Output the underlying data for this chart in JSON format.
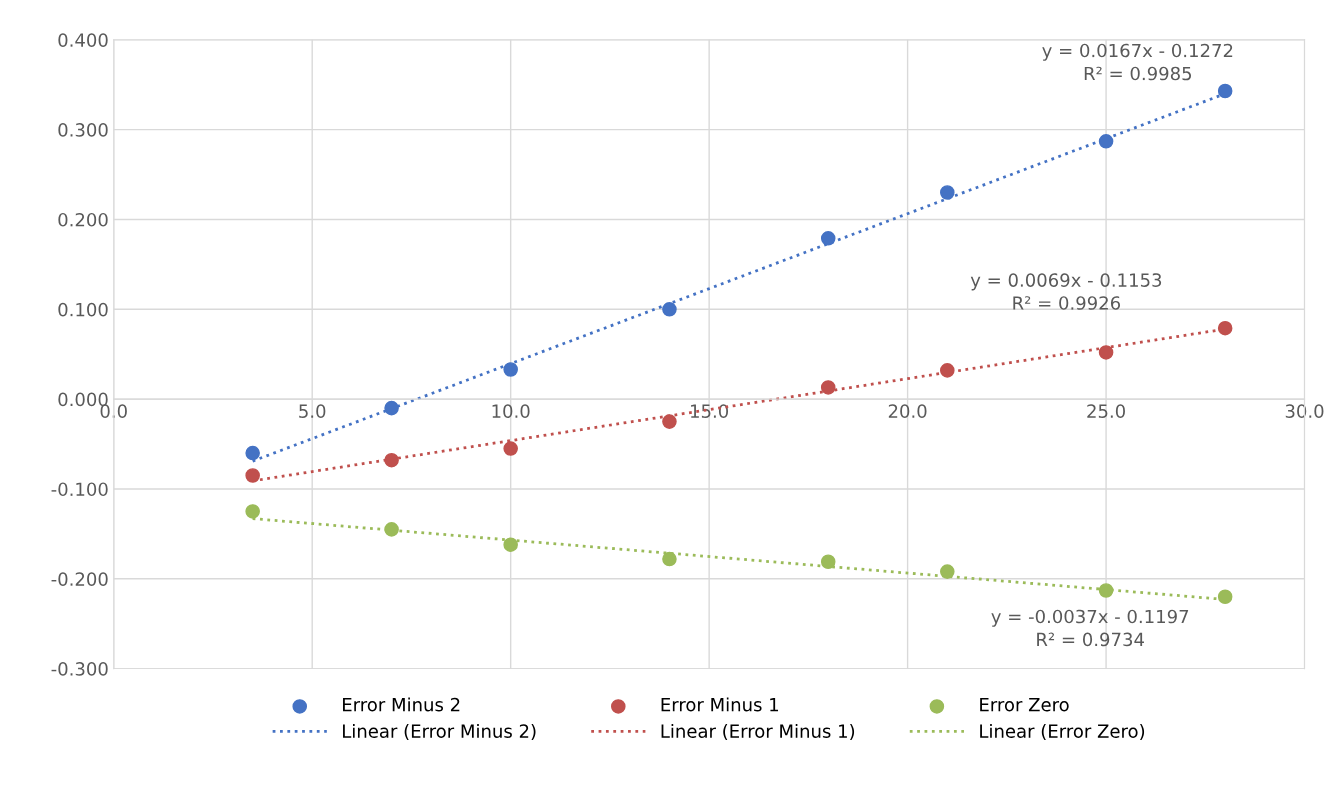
{
  "chart_data": {
    "type": "scatter",
    "xlim": [
      0,
      30
    ],
    "ylim": [
      -0.3,
      0.4
    ],
    "xticks": [
      {
        "value": 0,
        "label": "0.0"
      },
      {
        "value": 5,
        "label": "5.0"
      },
      {
        "value": 10,
        "label": "10.0"
      },
      {
        "value": 15,
        "label": "15.0"
      },
      {
        "value": 20,
        "label": "20.0"
      },
      {
        "value": 25,
        "label": "25.0"
      },
      {
        "value": 30,
        "label": "30.0"
      }
    ],
    "yticks": [
      {
        "value": -0.3,
        "label": "-0.300"
      },
      {
        "value": -0.2,
        "label": "-0.200"
      },
      {
        "value": -0.1,
        "label": "-0.100"
      },
      {
        "value": 0,
        "label": "0.000"
      },
      {
        "value": 0.1,
        "label": "0.100"
      },
      {
        "value": 0.2,
        "label": "0.200"
      },
      {
        "value": 0.3,
        "label": "0.300"
      },
      {
        "value": 0.4,
        "label": "0.400"
      }
    ],
    "grid": true,
    "legend": "bottom",
    "series": [
      {
        "name": "Error Minus 2",
        "marker": "circle",
        "color": "#4472c4",
        "x": [
          3.5,
          7,
          10,
          14,
          18,
          21,
          25,
          28
        ],
        "values": [
          -0.06,
          -0.01,
          0.033,
          0.1,
          0.179,
          0.23,
          0.287,
          0.343
        ]
      },
      {
        "name": "Linear (Error Minus 2)",
        "type": "line",
        "line_style": "dotted",
        "color": "#4472c4",
        "x": [
          3.5,
          28
        ],
        "values": [
          -0.069,
          0.34
        ]
      },
      {
        "name": "Error Minus 1",
        "marker": "circle",
        "color": "#c0504d",
        "x": [
          3.5,
          7,
          10,
          14,
          18,
          21,
          25,
          28
        ],
        "values": [
          -0.085,
          -0.068,
          -0.055,
          -0.025,
          0.013,
          0.032,
          0.052,
          0.079
        ]
      },
      {
        "name": "Linear (Error Minus 1)",
        "type": "line",
        "line_style": "dotted",
        "color": "#c0504d",
        "x": [
          3.5,
          28
        ],
        "values": [
          -0.091,
          0.078
        ]
      },
      {
        "name": "Error Zero",
        "marker": "circle",
        "color": "#9bbb59",
        "x": [
          3.5,
          7,
          10,
          14,
          18,
          21,
          25,
          28
        ],
        "values": [
          -0.125,
          -0.145,
          -0.162,
          -0.178,
          -0.181,
          -0.192,
          -0.213,
          -0.22
        ]
      },
      {
        "name": "Linear (Error Zero)",
        "type": "line",
        "line_style": "dotted",
        "color": "#9bbb59",
        "x": [
          3.5,
          28
        ],
        "values": [
          -0.133,
          -0.223
        ]
      }
    ],
    "annotations": [
      "y = 0.0167x - 0.1272\nR² = 0.9985",
      "y = 0.0069x - 0.1153\nR² = 0.9926",
      "y = -0.0037x - 0.1197\nR² = 0.9734"
    ]
  }
}
